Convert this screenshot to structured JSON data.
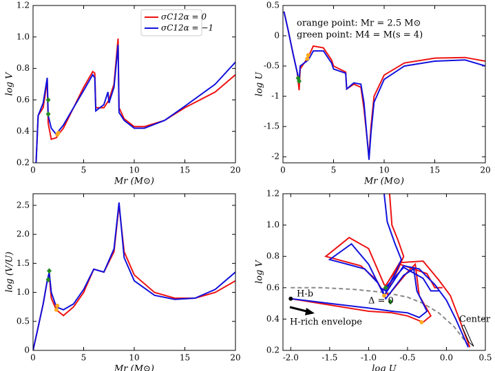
{
  "chart_data": [
    {
      "type": "line",
      "xlabel": "Mr (M⊙)",
      "ylabel": "log V",
      "legend": "upper center",
      "xlim": [
        0,
        20
      ],
      "xticks": [
        0,
        5,
        10,
        15,
        20
      ],
      "ylim": [
        0.2,
        1.2
      ],
      "yticks": [
        0.2,
        0.4,
        0.6,
        0.8,
        {
          "value": 1,
          "label": "1.0"
        },
        1.2
      ],
      "series": [
        {
          "name": "σC12α = 0",
          "color": "#ee1111",
          "x": [
            0.3,
            0.5,
            1,
            1.4,
            1.5,
            1.8,
            2.3,
            2.5,
            3,
            4,
            5,
            5.9,
            6.1,
            6.2,
            7,
            7.5,
            8,
            8.4,
            8.5,
            9,
            10,
            11,
            13,
            15,
            18,
            20
          ],
          "y": [
            0.2,
            0.5,
            0.55,
            0.72,
            0.45,
            0.35,
            0.36,
            0.38,
            0.42,
            0.55,
            0.68,
            0.78,
            0.77,
            0.55,
            0.55,
            0.6,
            0.7,
            0.99,
            0.55,
            0.48,
            0.43,
            0.43,
            0.47,
            0.55,
            0.65,
            0.76
          ]
        },
        {
          "name": "σC12α = −1",
          "color": "#1111dd",
          "x": [
            0.3,
            0.5,
            1,
            1.4,
            1.5,
            1.8,
            2.3,
            2.5,
            3,
            4,
            5,
            5.9,
            6.1,
            6.2,
            7,
            7.4,
            7.5,
            8,
            8.4,
            8.5,
            9,
            10,
            11,
            13,
            15,
            18,
            20
          ],
          "y": [
            0.2,
            0.5,
            0.58,
            0.74,
            0.5,
            0.42,
            0.38,
            0.4,
            0.44,
            0.55,
            0.66,
            0.76,
            0.74,
            0.53,
            0.57,
            0.65,
            0.58,
            0.68,
            0.95,
            0.52,
            0.47,
            0.42,
            0.42,
            0.47,
            0.56,
            0.7,
            0.84
          ]
        }
      ],
      "points": [
        {
          "color": "#228b22",
          "shape": "diamond",
          "x": [
            1.5,
            1.5
          ],
          "y": [
            0.6,
            0.51
          ]
        },
        {
          "color": "#ffaa22",
          "shape": "circle",
          "x": [
            2.4,
            2.5
          ],
          "y": [
            0.38,
            0.39
          ]
        }
      ]
    },
    {
      "type": "line",
      "xlabel": "Mr (M⊙)",
      "ylabel": "log U",
      "annotations": [
        "orange point: Mr = 2.5 M⊙",
        "green point: M4 = M(s = 4)"
      ],
      "xlim": [
        0,
        20
      ],
      "xticks": [
        0,
        5,
        10,
        15,
        20
      ],
      "ylim": [
        -2.1,
        0.5
      ],
      "yticks": [
        -2,
        -1.5,
        -1,
        -0.5,
        0,
        0.5
      ],
      "series": [
        {
          "name": "σC12α = 0",
          "color": "#ee1111",
          "x": [
            0.1,
            0.5,
            1,
            1.4,
            1.6,
            1.7,
            2.5,
            3,
            4,
            4.8,
            5,
            6.2,
            6.3,
            7,
            7.7,
            8,
            8.5,
            8.7,
            9,
            10,
            12,
            15,
            18,
            20
          ],
          "y": [
            0.4,
            0.1,
            -0.3,
            -0.6,
            -0.9,
            -0.55,
            -0.35,
            -0.17,
            -0.2,
            -0.4,
            -0.5,
            -0.6,
            -0.88,
            -0.8,
            -0.85,
            -1.2,
            -2.0,
            -1.5,
            -1.0,
            -0.65,
            -0.45,
            -0.37,
            -0.36,
            -0.42
          ]
        },
        {
          "name": "σC12α = −1",
          "color": "#1111dd",
          "x": [
            0.1,
            0.5,
            1,
            1.4,
            1.6,
            1.7,
            2.5,
            3,
            4,
            4.8,
            5,
            6.2,
            6.3,
            7,
            7.7,
            8,
            8.5,
            8.7,
            9,
            10,
            12,
            15,
            18,
            20
          ],
          "y": [
            0.4,
            0.1,
            -0.3,
            -0.6,
            -0.75,
            -0.5,
            -0.4,
            -0.25,
            -0.25,
            -0.45,
            -0.55,
            -0.62,
            -0.88,
            -0.78,
            -0.8,
            -1.1,
            -2.05,
            -1.6,
            -1.1,
            -0.72,
            -0.5,
            -0.42,
            -0.4,
            -0.5
          ]
        }
      ],
      "points": [
        {
          "color": "#228b22",
          "shape": "diamond",
          "x": [
            1.5,
            1.6
          ],
          "y": [
            -0.7,
            -0.75
          ]
        },
        {
          "color": "#ffaa22",
          "shape": "circle",
          "x": [
            2.4,
            2.5
          ],
          "y": [
            -0.38,
            -0.32
          ]
        }
      ]
    },
    {
      "type": "line",
      "xlabel": "Mr (M⊙)",
      "ylabel": "log (V/U)",
      "xlim": [
        0,
        20
      ],
      "xticks": [
        0,
        5,
        10,
        15,
        20
      ],
      "ylim": [
        0,
        2.7
      ],
      "yticks": [
        0,
        0.5,
        {
          "value": 1,
          "label": "1.0"
        },
        1.5,
        {
          "value": 2,
          "label": "2.0"
        },
        2.5
      ],
      "series": [
        {
          "name": "σC12α = 0",
          "color": "#ee1111",
          "x": [
            0,
            0.5,
            1,
            1.4,
            1.6,
            1.8,
            2.3,
            3,
            4,
            5,
            6,
            7,
            8,
            8.5,
            9,
            10,
            12,
            14,
            16,
            18,
            20
          ],
          "y": [
            0,
            0.4,
            0.8,
            1.2,
            1.3,
            0.9,
            0.7,
            0.6,
            0.75,
            1.0,
            1.4,
            1.35,
            1.7,
            2.5,
            1.7,
            1.3,
            1.0,
            0.9,
            0.9,
            1.0,
            1.2
          ]
        },
        {
          "name": "σC12α = −1",
          "color": "#1111dd",
          "x": [
            0,
            0.5,
            1,
            1.4,
            1.6,
            1.8,
            2.3,
            3,
            4,
            5,
            6,
            7,
            8,
            8.5,
            9,
            10,
            12,
            14,
            16,
            18,
            20
          ],
          "y": [
            0,
            0.4,
            0.8,
            1.2,
            1.35,
            1.0,
            0.75,
            0.7,
            0.8,
            1.05,
            1.4,
            1.35,
            1.75,
            2.55,
            1.6,
            1.2,
            0.95,
            0.88,
            0.9,
            1.05,
            1.35
          ]
        }
      ],
      "points": [
        {
          "color": "#228b22",
          "shape": "diamond",
          "x": [
            1.5,
            1.6
          ],
          "y": [
            1.22,
            1.37
          ]
        },
        {
          "color": "#ffaa22",
          "shape": "circle",
          "x": [
            2.3,
            2.4
          ],
          "y": [
            0.7,
            0.77
          ]
        }
      ]
    },
    {
      "type": "line",
      "xlabel": "log U",
      "ylabel": "log V",
      "annotations": [
        "Δ = 0",
        "H-b",
        "H-rich envelope",
        "Center"
      ],
      "xlim": [
        -2.1,
        0.5
      ],
      "xticks": [
        {
          "value": -2,
          "label": "-2.0"
        },
        -1.5,
        {
          "value": -1,
          "label": "-1.0"
        },
        -0.5,
        {
          "value": 0,
          "label": "0.0"
        },
        0.5
      ],
      "ylim": [
        0.2,
        1.2
      ],
      "yticks": [
        0.2,
        0.4,
        0.6,
        0.8,
        {
          "value": 1,
          "label": "1.0"
        },
        1.2
      ],
      "reference": {
        "color": "#888888",
        "x": [
          -2.0,
          -1.6,
          -1.2,
          -0.8,
          -0.5,
          -0.3,
          -0.1,
          0.1,
          0.3
        ],
        "y": [
          0.6,
          0.6,
          0.59,
          0.57,
          0.54,
          0.5,
          0.44,
          0.35,
          0.22
        ]
      },
      "series": [
        {
          "name": "σC12α = 0",
          "color": "#ee1111",
          "x": [
            -0.73,
            -0.7,
            -0.62,
            -0.55,
            -0.62,
            -0.75,
            -0.8,
            -1.0,
            -1.25,
            -1.55,
            -1.4,
            -1.1,
            -0.9,
            -0.82,
            -0.6,
            -0.3,
            -0.1,
            0.05,
            0.15,
            0.3,
            null,
            -2.0,
            -1.5,
            -1.0,
            -0.7,
            -0.5,
            -0.3,
            -0.2,
            -0.35,
            -0.4,
            -0.5,
            -0.75,
            -0.8,
            -0.6,
            -0.25,
            -0.15,
            -0.05
          ],
          "y": [
            1.2,
            1.0,
            0.9,
            0.8,
            0.72,
            0.6,
            0.62,
            0.85,
            0.92,
            0.8,
            0.78,
            0.74,
            0.65,
            0.58,
            0.76,
            0.77,
            0.65,
            0.55,
            0.42,
            0.22,
            null,
            0.53,
            0.49,
            0.45,
            0.44,
            0.42,
            0.38,
            0.42,
            0.55,
            0.75,
            0.7,
            0.55,
            0.6,
            0.75,
            0.69,
            0.6,
            0.6
          ]
        },
        {
          "name": "σC12α = −1",
          "color": "#1111dd",
          "x": [
            -0.8,
            -0.76,
            -0.66,
            -0.58,
            -0.65,
            -0.78,
            -0.85,
            -1.0,
            -1.22,
            -1.5,
            -1.35,
            -1.05,
            -0.88,
            -0.8,
            -0.55,
            -0.35,
            -0.15,
            0.0,
            0.12,
            0.28,
            null,
            -2.0,
            -1.5,
            -1.0,
            -0.7,
            -0.5,
            -0.35,
            -0.25,
            -0.38,
            -0.42,
            -0.55,
            -0.78,
            -0.82,
            -0.55,
            -0.3,
            -0.2,
            -0.1
          ],
          "y": [
            1.2,
            1.02,
            0.88,
            0.78,
            0.7,
            0.58,
            0.6,
            0.75,
            0.88,
            0.78,
            0.76,
            0.72,
            0.63,
            0.55,
            0.74,
            0.72,
            0.62,
            0.52,
            0.4,
            0.22,
            null,
            0.53,
            0.5,
            0.47,
            0.45,
            0.44,
            0.41,
            0.45,
            0.58,
            0.72,
            0.68,
            0.53,
            0.58,
            0.73,
            0.66,
            0.58,
            0.58
          ]
        }
      ],
      "points": [
        {
          "color": "#000000",
          "shape": "circle",
          "x": [
            -2.0
          ],
          "y": [
            0.53
          ]
        },
        {
          "color": "#228b22",
          "shape": "diamond",
          "x": [
            -0.78,
            -0.72
          ],
          "y": [
            0.6,
            0.51
          ]
        },
        {
          "color": "#ffaa22",
          "shape": "circle",
          "x": [
            -0.32,
            -0.8
          ],
          "y": [
            0.38,
            0.55
          ]
        }
      ]
    }
  ]
}
